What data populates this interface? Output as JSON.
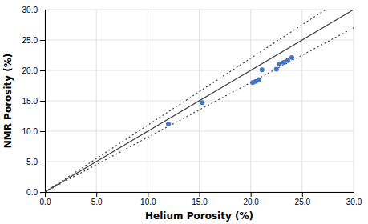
{
  "chart_data": {
    "type": "scatter",
    "x": [
      12.0,
      15.3,
      20.2,
      20.5,
      20.8,
      21.1,
      22.5,
      22.8,
      23.2,
      23.6,
      24.0
    ],
    "values": [
      11.2,
      14.7,
      18.0,
      18.2,
      18.5,
      20.1,
      20.2,
      21.1,
      21.3,
      21.6,
      22.1
    ],
    "color": "#4472C4",
    "reference_lines": [
      {
        "slope": 1.0,
        "line_style": "solid",
        "color": "#404040"
      },
      {
        "slope": 1.1,
        "line_style": "dotted",
        "color": "#404040"
      },
      {
        "slope": 0.9,
        "line_style": "dotted",
        "color": "#404040"
      }
    ],
    "xlim": [
      0.0,
      30.0
    ],
    "ylim": [
      0.0,
      30.0
    ],
    "xticks": [
      {
        "value": 0.0,
        "label": "0.0"
      },
      {
        "value": 5.0,
        "label": "5.0"
      },
      {
        "value": 10.0,
        "label": "10.0"
      },
      {
        "value": 15.0,
        "label": "15.0"
      },
      {
        "value": 20.0,
        "label": "20.0"
      },
      {
        "value": 25.0,
        "label": "25.0"
      },
      {
        "value": 30.0,
        "label": "30.0"
      }
    ],
    "yticks": [
      {
        "value": 0.0,
        "label": "0.0"
      },
      {
        "value": 5.0,
        "label": "5.0"
      },
      {
        "value": 10.0,
        "label": "10.0"
      },
      {
        "value": 15.0,
        "label": "15.0"
      },
      {
        "value": 20.0,
        "label": "20.0"
      },
      {
        "value": 25.0,
        "label": "25.0"
      },
      {
        "value": 30.0,
        "label": "30.0"
      }
    ],
    "xlabel": "Helium Porosity (%)",
    "ylabel": "NMR Porosity (%)",
    "grid": true
  }
}
